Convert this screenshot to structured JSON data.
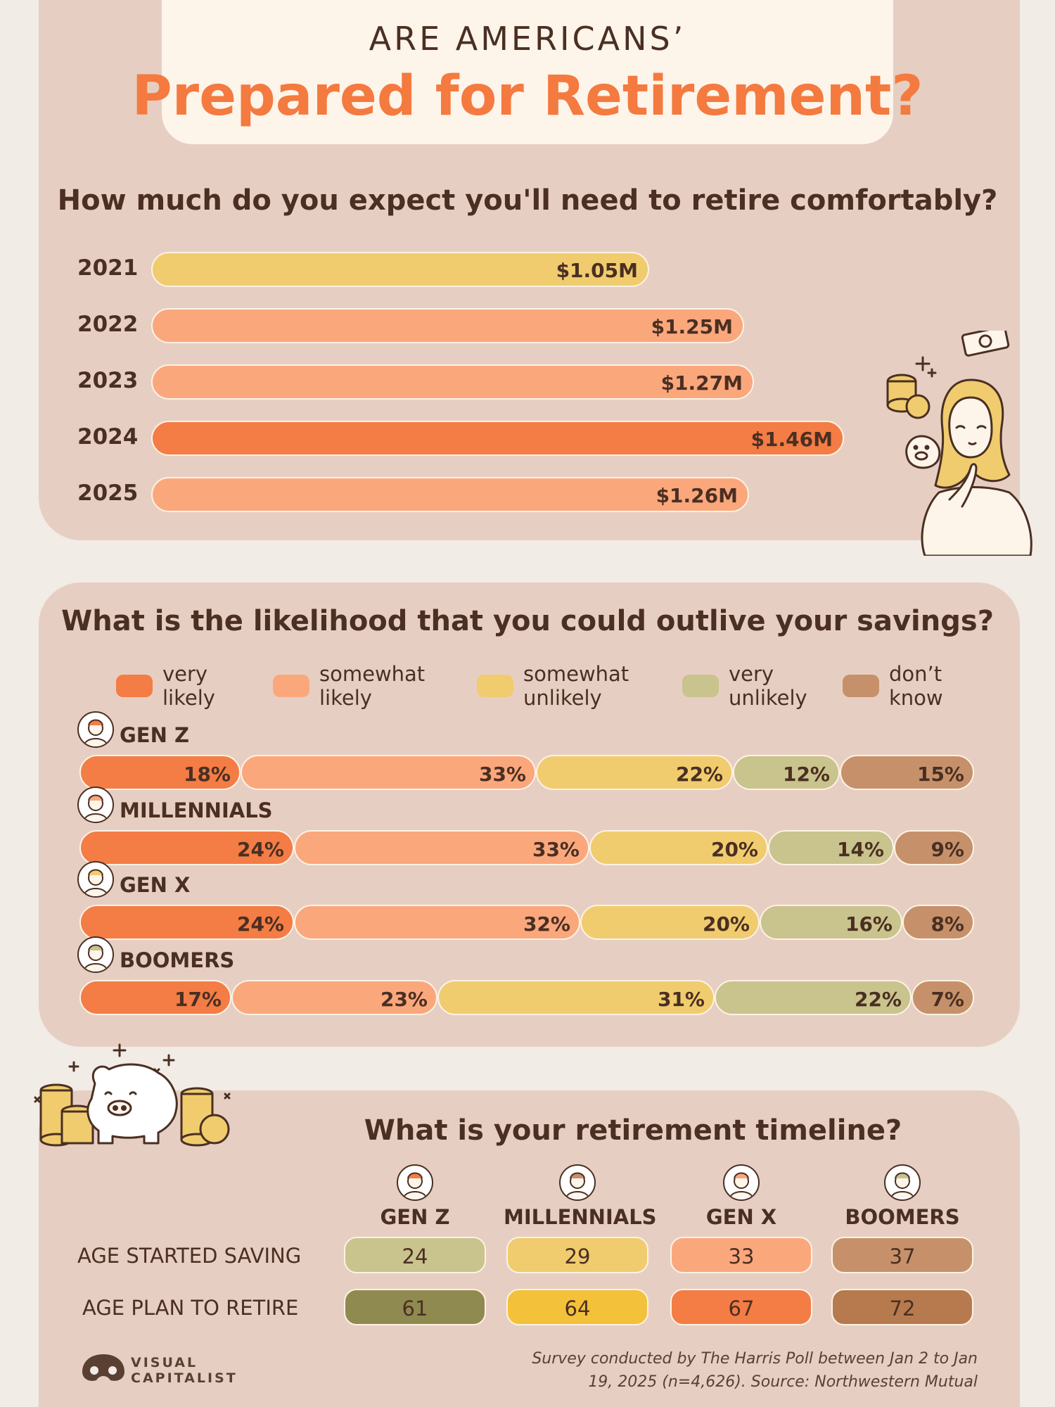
{
  "header": {
    "kicker": "ARE AMERICANS’",
    "title": "Prepared for Retirement?"
  },
  "colors": {
    "very_likely": "#f47c45",
    "somewhat_likely": "#fba77c",
    "somewhat_unlikely": "#f0cc6e",
    "very_unlikely": "#c9c38d",
    "dont_know": "#c6916a",
    "bar_default": "#fba77c",
    "bar_2021": "#f0cc6e",
    "bar_highlight": "#f47c45"
  },
  "chart_data": [
    {
      "type": "bar",
      "orientation": "horizontal",
      "title": "How much do you expect you'll need to retire comfortably?",
      "categories": [
        "2021",
        "2022",
        "2023",
        "2024",
        "2025"
      ],
      "values": [
        1.05,
        1.25,
        1.27,
        1.46,
        1.26
      ],
      "value_labels": [
        "$1.05M",
        "$1.25M",
        "$1.27M",
        "$1.46M",
        "$1.26M"
      ],
      "unit": "$M",
      "xlim": [
        0,
        1.46
      ],
      "grid": false
    },
    {
      "type": "bar",
      "orientation": "horizontal",
      "stacked": "percent",
      "title": "What is the likelihood that you could outlive your savings?",
      "legend": {
        "placement": "top",
        "items": [
          "very\nlikely",
          "somewhat\nlikely",
          "somewhat\nunlikely",
          "very\nunlikely",
          "don’t\nknow"
        ]
      },
      "categories": [
        "GEN Z",
        "MILLENNIALS",
        "GEN X",
        "BOOMERS"
      ],
      "series": [
        {
          "name": "very likely",
          "values": [
            18,
            24,
            24,
            17
          ],
          "labels": [
            "18%",
            "24%",
            "24%",
            "17%"
          ]
        },
        {
          "name": "somewhat likely",
          "values": [
            33,
            33,
            32,
            23
          ],
          "labels": [
            "33%",
            "33%",
            "32%",
            "23%"
          ]
        },
        {
          "name": "somewhat unlikely",
          "values": [
            22,
            20,
            20,
            31
          ],
          "labels": [
            "22%",
            "20%",
            "20%",
            "31%"
          ]
        },
        {
          "name": "very unlikely",
          "values": [
            12,
            14,
            16,
            22
          ],
          "labels": [
            "12%",
            "14%",
            "16%",
            "22%"
          ]
        },
        {
          "name": "don’t know",
          "values": [
            15,
            9,
            8,
            7
          ],
          "labels": [
            "15%",
            "9%",
            "8%",
            "7%"
          ]
        }
      ]
    },
    {
      "type": "table",
      "title": "What is your retirement timeline?",
      "columns": [
        "GEN Z",
        "MILLENNIALS",
        "GEN X",
        "BOOMERS"
      ],
      "rows": [
        {
          "label": "AGE STARTED SAVING",
          "values": [
            "24",
            "29",
            "33",
            "37"
          ]
        },
        {
          "label": "AGE PLAN TO RETIRE",
          "values": [
            "61",
            "64",
            "67",
            "72"
          ]
        }
      ],
      "cell_colors": [
        [
          "#c9c38d",
          "#f0cc6e",
          "#fba77c",
          "#c6916a"
        ],
        [
          "#8f8a4f",
          "#f3c13a",
          "#f47c45",
          "#b67a4e"
        ]
      ]
    }
  ],
  "footer": {
    "logo_line1": "VISUAL",
    "logo_line2": "CAPITALIST",
    "source": "Survey conducted by The Harris Poll between Jan 2 to Jan 19, 2025 (n=4,626). Source: Northwestern Mutual"
  }
}
